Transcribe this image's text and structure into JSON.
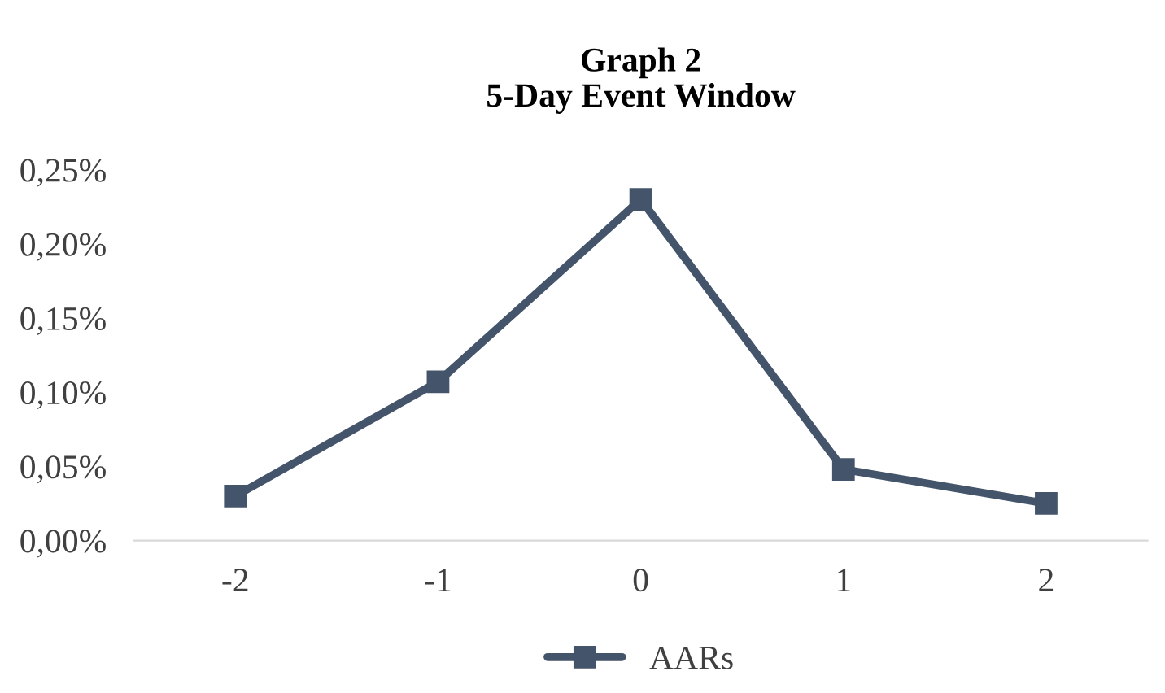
{
  "chart_data": {
    "type": "line",
    "title": "Graph 2\n5-Day Event Window",
    "categories": [
      "-2",
      "-1",
      "0",
      "1",
      "2"
    ],
    "series": [
      {
        "name": "AARs",
        "color": "#44546a",
        "values": [
          0.03,
          0.107,
          0.23,
          0.048,
          0.025
        ]
      }
    ],
    "ylim": [
      0,
      0.25
    ],
    "yticks": [
      {
        "value": 0,
        "label": "0,00%"
      },
      {
        "value": 0.05,
        "label": "0,05%"
      },
      {
        "value": 0.1,
        "label": "0,10%"
      },
      {
        "value": 0.15,
        "label": "0,15%"
      },
      {
        "value": 0.2,
        "label": "0,20%"
      },
      {
        "value": 0.25,
        "label": "0,25%"
      }
    ],
    "grid": false,
    "legend": "bottom",
    "marker": "square",
    "line_style": "solid"
  }
}
